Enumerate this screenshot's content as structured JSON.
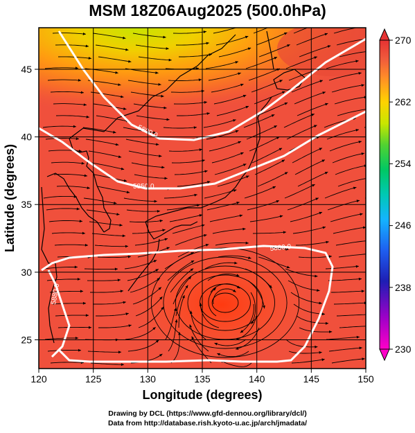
{
  "title": "MSM 18Z06Aug2025 (500.0hPa)",
  "xlabel": "Longitude (degrees)",
  "ylabel": "Latitude  (degrees)",
  "x_ticks": [
    "120",
    "125",
    "130",
    "135",
    "140",
    "145",
    "150"
  ],
  "y_ticks": [
    "25",
    "30",
    "35",
    "40",
    "45"
  ],
  "colorbar": {
    "labels": [
      "270",
      "262",
      "254",
      "246",
      "238",
      "230"
    ],
    "range": [
      230,
      270
    ],
    "colors": [
      "#d9007a",
      "#a000c8",
      "#1f1fb4",
      "#1e5ff0",
      "#14b4ff",
      "#00c8b4",
      "#00c864",
      "#32c832",
      "#a0dc1e",
      "#e6e600",
      "#ffb400",
      "#ff7828",
      "#f0503c",
      "#dc2828"
    ]
  },
  "contours": [
    {
      "label": "5800.0"
    },
    {
      "label": "5850.0"
    },
    {
      "label": "5880.0"
    },
    {
      "label": "5880.0"
    }
  ],
  "credits": {
    "line1": "Drawing by DCL (https://www.gfd-dennou.org/library/dcl/)",
    "line2": "Data from http://database.rish.kyoto-u.ac.jp/arch/jmadata/"
  },
  "chart_data": {
    "type": "heatmap",
    "title": "MSM 18Z06Aug2025 (500.0hPa)",
    "xlabel": "Longitude (degrees)",
    "ylabel": "Latitude  (degrees)",
    "xlim": [
      120,
      150
    ],
    "ylim": [
      22.4,
      47.6
    ],
    "x_ticks": [
      120,
      125,
      130,
      135,
      140,
      145,
      150
    ],
    "y_ticks": [
      25,
      30,
      35,
      40,
      45
    ],
    "colorbar_range": [
      230,
      270
    ],
    "colorbar_ticks": [
      230,
      238,
      246,
      254,
      262,
      270
    ],
    "grid": true,
    "overlays": [
      "streamlines",
      "geopotential height contours",
      "coastlines"
    ],
    "contour_values": [
      5800.0,
      5850.0,
      5880.0,
      5880.0
    ],
    "features": {
      "cold_core": {
        "lon": 128,
        "lat": 46.5,
        "value": 262
      },
      "anticyclone_center": {
        "lon": 136,
        "lat": 27.3
      }
    }
  }
}
